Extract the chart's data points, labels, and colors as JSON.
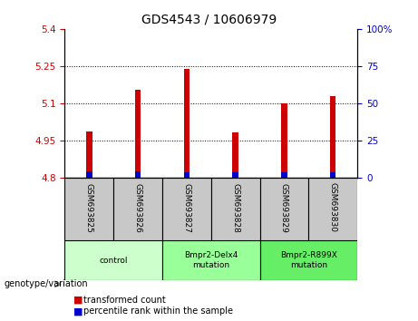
{
  "title": "GDS4543 / 10606979",
  "samples": [
    "GSM693825",
    "GSM693826",
    "GSM693827",
    "GSM693828",
    "GSM693829",
    "GSM693830"
  ],
  "red_tops": [
    4.985,
    5.155,
    5.238,
    4.983,
    5.1,
    5.13
  ],
  "blue_tops": [
    4.824,
    4.824,
    4.822,
    4.822,
    4.82,
    4.82
  ],
  "baseline": 4.8,
  "ylim_left": [
    4.8,
    5.4
  ],
  "ylim_right": [
    0,
    100
  ],
  "yticks_left": [
    4.8,
    4.95,
    5.1,
    5.25,
    5.4
  ],
  "yticks_right": [
    0,
    25,
    50,
    75,
    100
  ],
  "ytick_labels_left": [
    "4.8",
    "4.95",
    "5.1",
    "5.25",
    "5.4"
  ],
  "ytick_labels_right": [
    "0",
    "25",
    "50",
    "75",
    "100%"
  ],
  "grid_lines": [
    4.95,
    5.1,
    5.25
  ],
  "bar_width": 0.12,
  "red_color": "#cc0000",
  "blue_color": "#0000cc",
  "genotype_label": "genotype/variation",
  "groups": [
    {
      "label": "control",
      "samples": [
        0,
        1
      ],
      "color": "#ccffcc"
    },
    {
      "label": "Bmpr2-Delx4\nmutation",
      "samples": [
        2,
        3
      ],
      "color": "#99ff99"
    },
    {
      "label": "Bmpr2-R899X\nmutation",
      "samples": [
        4,
        5
      ],
      "color": "#66ee66"
    }
  ],
  "legend_items": [
    {
      "label": "transformed count",
      "color": "#cc0000"
    },
    {
      "label": "percentile rank within the sample",
      "color": "#0000cc"
    }
  ],
  "tick_color_left": "#cc0000",
  "tick_color_right": "#0000cc",
  "sample_box_color": "#c8c8c8",
  "group_colors": [
    "#ccffcc",
    "#99ff99",
    "#66ee66"
  ]
}
